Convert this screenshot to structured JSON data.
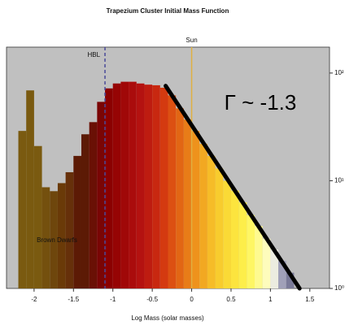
{
  "chart_data": {
    "type": "histogram",
    "title": "Trapezium Cluster Initial Mass Function",
    "x_label": "Log Mass (solar masses)",
    "bins": [
      -2.2,
      -2.1,
      -2.0,
      -1.9,
      -1.8,
      -1.7,
      -1.6,
      -1.5,
      -1.4,
      -1.3,
      -1.2,
      -1.1,
      -1.0,
      -0.9,
      -0.8,
      -0.7,
      -0.6,
      -0.5,
      -0.4,
      -0.3,
      -0.2,
      -0.1,
      0.0,
      0.1,
      0.2,
      0.3,
      0.4,
      0.5,
      0.6,
      0.7,
      0.8,
      0.9,
      1.0,
      1.1,
      1.2,
      1.3
    ],
    "values": [
      29,
      69,
      21,
      8.7,
      8,
      9.5,
      12,
      17,
      27,
      35,
      54,
      72,
      80,
      83,
      83,
      80,
      78,
      77,
      73,
      62,
      47,
      37,
      29,
      22,
      17,
      13,
      10,
      8.1,
      6.3,
      4.8,
      3.8,
      2.9,
      2.3,
      1.8,
      1.4
    ],
    "colors": [
      "#7a5a10",
      "#7a5a10",
      "#7a5a10",
      "#74500e",
      "#6e460c",
      "#6a3a08",
      "#66300a",
      "#5c1a05",
      "#5c1a05",
      "#6a1005",
      "#7a0505",
      "#8b0000",
      "#960404",
      "#a00808",
      "#aa0c0c",
      "#b41210",
      "#be1c10",
      "#c82810",
      "#d43a10",
      "#dc5012",
      "#e26614",
      "#e87c18",
      "#ee921c",
      "#f2a822",
      "#f6bc28",
      "#f8cc2e",
      "#fada36",
      "#fce43e",
      "#fdee4a",
      "#fef664",
      "#fefa90",
      "#fefcbc",
      "#ecece0",
      "#a0a0b8",
      "#7a7a98"
    ],
    "xlim": [
      -2.35,
      1.75
    ],
    "xticks": [
      -2.0,
      -1.5,
      -1.0,
      -0.5,
      0.0,
      0.5,
      1.0,
      1.5
    ],
    "ylim": [
      1,
      174
    ],
    "log_y": true,
    "y_axis_side": "right",
    "yticks": [
      {
        "value": 1,
        "label": "10⁰"
      },
      {
        "value": 10,
        "label": "10¹"
      },
      {
        "value": 100,
        "label": "10²"
      }
    ],
    "plot_background": "#c0c0c0",
    "vlines": [
      {
        "x": -1.1,
        "label": "HBL",
        "color": "#4a4a9a",
        "dashed": true
      },
      {
        "x": 0.0,
        "label": "Sun",
        "color": "#e0b040",
        "dashed": false
      }
    ],
    "fit": {
      "x": [
        -0.33,
        1.37
      ],
      "y": [
        76,
        1
      ],
      "label": "Γ ~ -1.3",
      "color": "#000000"
    },
    "annotation": "Brown Dwarfs"
  }
}
